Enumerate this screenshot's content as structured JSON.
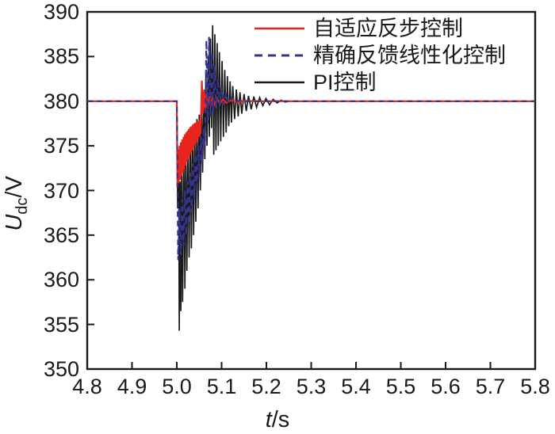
{
  "chart_data": {
    "type": "line",
    "title": "",
    "xlabel": {
      "symbol": "t",
      "unit": "/s"
    },
    "ylabel": {
      "symbol": "U",
      "subscript": "dc",
      "unit": "/V"
    },
    "xlim": [
      4.8,
      5.8
    ],
    "ylim": [
      350,
      390
    ],
    "x_ticks": [
      "4.8",
      "4.9",
      "5.0",
      "5.1",
      "5.2",
      "5.3",
      "5.4",
      "5.5",
      "5.6",
      "5.7",
      "5.8"
    ],
    "y_ticks": [
      "350",
      "355",
      "360",
      "365",
      "370",
      "375",
      "380",
      "385",
      "390"
    ],
    "grid": false,
    "legend_position": "top-right-inside",
    "axis_color": "#1a1a1a",
    "series": [
      {
        "name": "adaptive-backstepping",
        "label": "自适应反步控制",
        "color": "#e8251d",
        "dash": "",
        "width": 2.2,
        "points": [
          [
            4.8,
            380
          ],
          [
            5.0,
            380
          ],
          [
            5.0015,
            370.3
          ],
          [
            5.003,
            374.6
          ],
          [
            5.0045,
            370.8
          ],
          [
            5.006,
            375
          ],
          [
            5.0075,
            371.2
          ],
          [
            5.009,
            375.4
          ],
          [
            5.0105,
            371.6
          ],
          [
            5.012,
            375.7
          ],
          [
            5.0135,
            372
          ],
          [
            5.015,
            376
          ],
          [
            5.0165,
            372.4
          ],
          [
            5.018,
            376.3
          ],
          [
            5.0195,
            372.8
          ],
          [
            5.021,
            376.5
          ],
          [
            5.0225,
            373.2
          ],
          [
            5.024,
            376.7
          ],
          [
            5.0255,
            373.5
          ],
          [
            5.027,
            376.9
          ],
          [
            5.0285,
            373.9
          ],
          [
            5.03,
            377.1
          ],
          [
            5.0315,
            374.2
          ],
          [
            5.033,
            377.2
          ],
          [
            5.0345,
            374.5
          ],
          [
            5.036,
            377.4
          ],
          [
            5.0375,
            374.8
          ],
          [
            5.039,
            377.5
          ],
          [
            5.0405,
            375.1
          ],
          [
            5.042,
            377.6
          ],
          [
            5.0435,
            375.4
          ],
          [
            5.045,
            377.7
          ],
          [
            5.0465,
            375.7
          ],
          [
            5.048,
            377.8
          ],
          [
            5.0495,
            376
          ],
          [
            5.051,
            377.9
          ],
          [
            5.0525,
            376.3
          ],
          [
            5.054,
            378
          ],
          [
            5.056,
            382.3
          ],
          [
            5.058,
            378.6
          ],
          [
            5.061,
            381.3
          ],
          [
            5.0635,
            378.9
          ],
          [
            5.066,
            380.9
          ],
          [
            5.069,
            379.2
          ],
          [
            5.0725,
            380.6
          ],
          [
            5.076,
            379.4
          ],
          [
            5.08,
            380.5
          ],
          [
            5.085,
            379.6
          ],
          [
            5.09,
            380.3
          ],
          [
            5.096,
            379.7
          ],
          [
            5.103,
            380.2
          ],
          [
            5.111,
            379.8
          ],
          [
            5.12,
            380.1
          ],
          [
            5.135,
            379.9
          ],
          [
            5.15,
            380.05
          ],
          [
            5.17,
            380
          ],
          [
            5.8,
            380
          ]
        ]
      },
      {
        "name": "exact-feedback-linearization",
        "label": "精确反馈线性化控制",
        "color": "#34348c",
        "dash": "7,5",
        "width": 2.2,
        "points": [
          [
            4.8,
            380
          ],
          [
            5.0,
            380
          ],
          [
            5.003,
            362.2
          ],
          [
            5.006,
            368
          ],
          [
            5.009,
            362.8
          ],
          [
            5.012,
            369
          ],
          [
            5.015,
            363.8
          ],
          [
            5.018,
            370
          ],
          [
            5.021,
            365
          ],
          [
            5.024,
            371
          ],
          [
            5.027,
            366.3
          ],
          [
            5.03,
            372
          ],
          [
            5.033,
            367.6
          ],
          [
            5.036,
            373
          ],
          [
            5.039,
            369
          ],
          [
            5.042,
            374
          ],
          [
            5.045,
            370.4
          ],
          [
            5.048,
            375
          ],
          [
            5.051,
            371.8
          ],
          [
            5.054,
            376
          ],
          [
            5.057,
            373.2
          ],
          [
            5.06,
            377
          ],
          [
            5.063,
            375
          ],
          [
            5.066,
            386.8
          ],
          [
            5.069,
            377.5
          ],
          [
            5.072,
            387.2
          ],
          [
            5.075,
            378.2
          ],
          [
            5.078,
            385.5
          ],
          [
            5.081,
            378.8
          ],
          [
            5.084,
            384
          ],
          [
            5.088,
            379.2
          ],
          [
            5.092,
            382.5
          ],
          [
            5.096,
            379.4
          ],
          [
            5.1,
            381.5
          ],
          [
            5.105,
            379.6
          ],
          [
            5.11,
            380.9
          ],
          [
            5.116,
            379.8
          ],
          [
            5.123,
            380.4
          ],
          [
            5.131,
            379.9
          ],
          [
            5.14,
            380.1
          ],
          [
            5.15,
            380
          ],
          [
            5.8,
            380
          ]
        ]
      },
      {
        "name": "pi-control",
        "label": "PI控制",
        "color": "#1a1a1a",
        "dash": "",
        "width": 1.7,
        "points": [
          [
            4.8,
            380
          ],
          [
            5.0,
            380
          ],
          [
            5.002,
            368
          ],
          [
            5.004,
            374.5
          ],
          [
            5.0055,
            354.3
          ],
          [
            5.0075,
            371
          ],
          [
            5.009,
            356.5
          ],
          [
            5.011,
            373
          ],
          [
            5.013,
            357.5
          ],
          [
            5.0155,
            374.5
          ],
          [
            5.018,
            359
          ],
          [
            5.02,
            375.5
          ],
          [
            5.0225,
            361
          ],
          [
            5.025,
            376
          ],
          [
            5.0275,
            362.5
          ],
          [
            5.03,
            376.5
          ],
          [
            5.0325,
            363.5
          ],
          [
            5.035,
            377
          ],
          [
            5.0375,
            365
          ],
          [
            5.04,
            377.5
          ],
          [
            5.0425,
            366.5
          ],
          [
            5.045,
            378
          ],
          [
            5.0475,
            368
          ],
          [
            5.05,
            378.5
          ],
          [
            5.0525,
            370
          ],
          [
            5.055,
            379.5
          ],
          [
            5.0575,
            372
          ],
          [
            5.06,
            381
          ],
          [
            5.0625,
            373.5
          ],
          [
            5.065,
            383
          ],
          [
            5.0675,
            375
          ],
          [
            5.07,
            385
          ],
          [
            5.0725,
            376
          ],
          [
            5.075,
            387
          ],
          [
            5.0775,
            377
          ],
          [
            5.08,
            388.5
          ],
          [
            5.0825,
            374
          ],
          [
            5.085,
            387.5
          ],
          [
            5.0875,
            374.5
          ],
          [
            5.09,
            386.5
          ],
          [
            5.0925,
            375
          ],
          [
            5.095,
            385.5
          ],
          [
            5.098,
            375.5
          ],
          [
            5.101,
            384.5
          ],
          [
            5.104,
            376
          ],
          [
            5.107,
            383.5
          ],
          [
            5.11,
            376.5
          ],
          [
            5.113,
            382.8
          ],
          [
            5.116,
            377.2
          ],
          [
            5.119,
            382.2
          ],
          [
            5.122,
            377.6
          ],
          [
            5.125,
            381.7
          ],
          [
            5.129,
            378
          ],
          [
            5.133,
            381.3
          ],
          [
            5.137,
            378.3
          ],
          [
            5.141,
            381
          ],
          [
            5.145,
            378.6
          ],
          [
            5.15,
            380.8
          ],
          [
            5.155,
            378.9
          ],
          [
            5.16,
            380.6
          ],
          [
            5.166,
            379.1
          ],
          [
            5.172,
            380.5
          ],
          [
            5.178,
            379.3
          ],
          [
            5.185,
            380.4
          ],
          [
            5.192,
            379.5
          ],
          [
            5.199,
            380.3
          ],
          [
            5.207,
            379.6
          ],
          [
            5.215,
            380.2
          ],
          [
            5.224,
            379.8
          ],
          [
            5.233,
            380.1
          ],
          [
            5.242,
            379.9
          ],
          [
            5.25,
            380
          ],
          [
            5.8,
            380
          ]
        ]
      }
    ]
  }
}
